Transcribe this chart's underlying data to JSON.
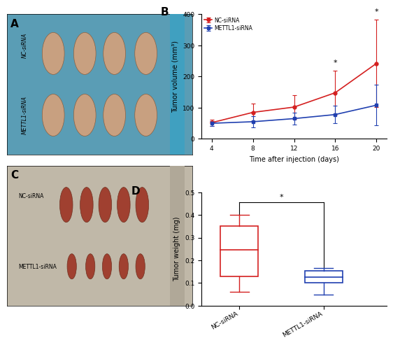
{
  "panel_B": {
    "x": [
      4,
      8,
      12,
      16,
      20
    ],
    "nc_mean": [
      52,
      85,
      102,
      148,
      242
    ],
    "nc_err": [
      10,
      28,
      38,
      70,
      140
    ],
    "mettl_mean": [
      50,
      55,
      65,
      78,
      108
    ],
    "mettl_err": [
      8,
      18,
      20,
      28,
      65
    ],
    "xlabel": "Time after injection (days)",
    "ylabel": "Tumor volume (mm³)",
    "ylim": [
      0,
      400
    ],
    "yticks": [
      0,
      100,
      200,
      300,
      400
    ],
    "xticks": [
      4,
      8,
      12,
      16,
      20
    ],
    "nc_color": "#d42020",
    "mettl_color": "#2040b0",
    "legend_nc": "NC-siRNA",
    "legend_mettl": "METTL1-siRNA"
  },
  "panel_D": {
    "ylabel": "Tumor weight (mg)",
    "ylim": [
      0.0,
      0.5
    ],
    "yticks": [
      0.0,
      0.1,
      0.2,
      0.3,
      0.4,
      0.5
    ],
    "nc_color": "#d42020",
    "mettl_color": "#2040b0",
    "categories": [
      "NC-siRNA",
      "METTL1-siRNA"
    ],
    "nc_box": {
      "min": 0.06,
      "q1": 0.13,
      "median": 0.245,
      "q3": 0.35,
      "max": 0.4
    },
    "mettl_box": {
      "min": 0.05,
      "q1": 0.1,
      "median": 0.125,
      "q3": 0.155,
      "max": 0.165
    }
  },
  "panel_A_color": "#5a9db5",
  "panel_C_color": "#c0b8a8",
  "bg_color": "#ffffff",
  "label_A_nc": "NC-siRNA",
  "label_A_mettl": "METTL1-siRNA",
  "label_C_nc": "NC-siRNA",
  "label_C_mettl": "METTL1-siRNA"
}
